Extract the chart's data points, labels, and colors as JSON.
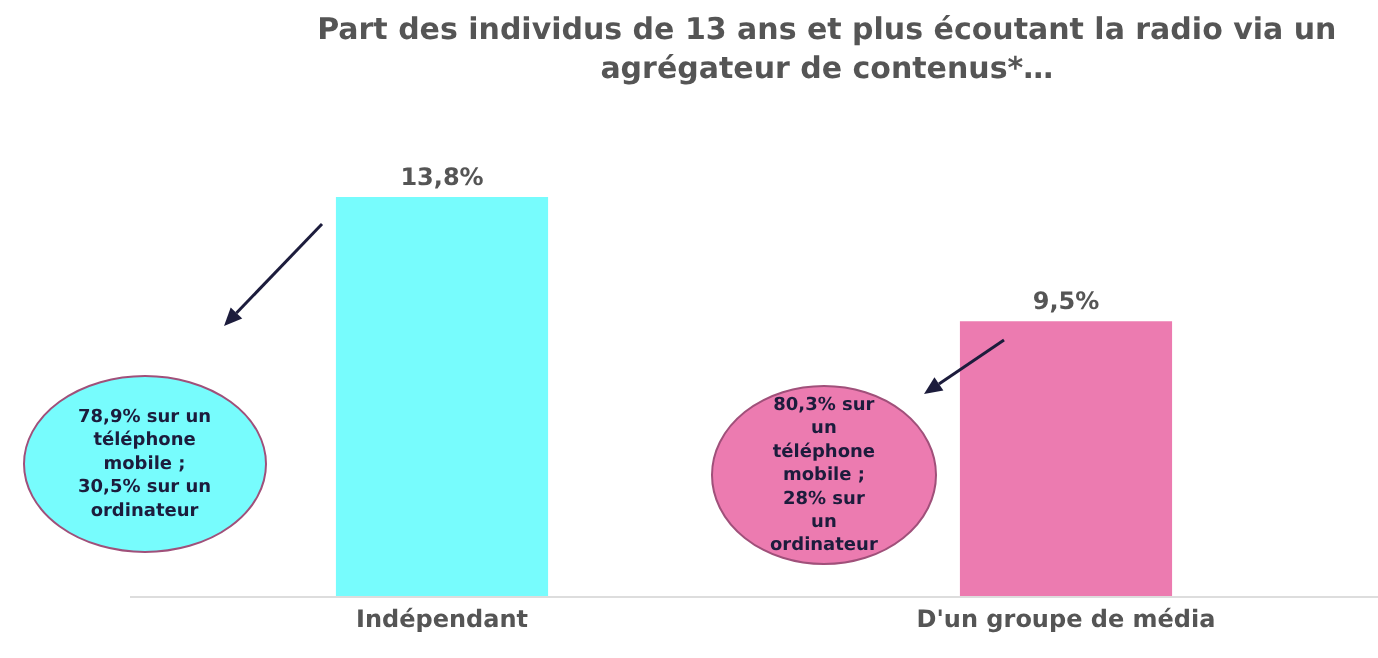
{
  "chart_data": {
    "type": "bar",
    "title": "Part des individus de 13 ans et plus écoutant la radio via un agrégateur de contenus*…",
    "categories": [
      "Indépendant",
      "D'un groupe de média"
    ],
    "values": [
      13.8,
      9.5
    ],
    "colors": [
      "#77fcfd",
      "#ec7bb0"
    ],
    "value_labels": [
      "13,8%",
      "9,5%"
    ],
    "annotations": [
      "78,9% sur un téléphone mobile ; 30,5% sur un ordinateur",
      "80,3% sur un téléphone mobile ; 28% sur un ordinateur"
    ]
  }
}
